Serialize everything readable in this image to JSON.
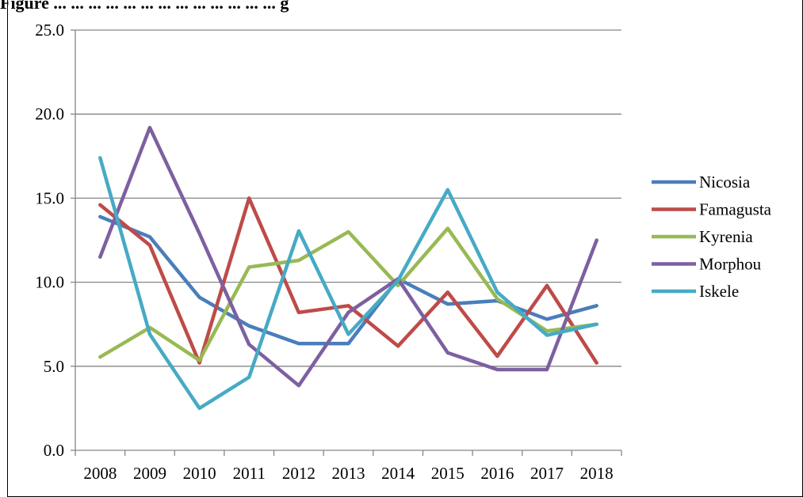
{
  "caption": "Figure ... ... ... ... ... ... ... ... ... ... ... ... ... g",
  "chart_data": {
    "type": "line",
    "title": "",
    "xlabel": "",
    "ylabel": "",
    "categories": [
      "2008",
      "2009",
      "2010",
      "2011",
      "2012",
      "2013",
      "2014",
      "2015",
      "2016",
      "2017",
      "2018"
    ],
    "ylim": [
      0,
      25
    ],
    "yticks": [
      "0.0",
      "5.0",
      "10.0",
      "15.0",
      "20.0",
      "25.0"
    ],
    "ytick_values": [
      0,
      5,
      10,
      15,
      20,
      25
    ],
    "grid": "horizontal",
    "legend_position": "right",
    "series": [
      {
        "name": "Nicosia",
        "color": "#4a7ebb",
        "values": [
          13.9,
          12.7,
          9.1,
          7.4,
          6.35,
          6.35,
          10.2,
          8.7,
          8.9,
          7.8,
          8.6
        ]
      },
      {
        "name": "Famagusta",
        "color": "#be4b48",
        "values": [
          14.6,
          12.2,
          5.2,
          15.0,
          8.2,
          8.6,
          6.2,
          9.4,
          5.6,
          9.8,
          5.2
        ]
      },
      {
        "name": "Kyrenia",
        "color": "#98b954",
        "values": [
          5.55,
          7.3,
          5.35,
          10.9,
          11.3,
          13.0,
          9.8,
          13.2,
          9.0,
          7.1,
          7.5
        ]
      },
      {
        "name": "Morphou",
        "color": "#7d60a0",
        "values": [
          11.5,
          19.2,
          12.9,
          6.3,
          3.85,
          8.2,
          10.2,
          5.8,
          4.8,
          4.8,
          12.5
        ]
      },
      {
        "name": "Iskele",
        "color": "#46aac5",
        "values": [
          17.4,
          6.9,
          2.5,
          4.35,
          13.05,
          6.9,
          10.1,
          15.5,
          9.4,
          6.85,
          7.5
        ]
      }
    ]
  }
}
